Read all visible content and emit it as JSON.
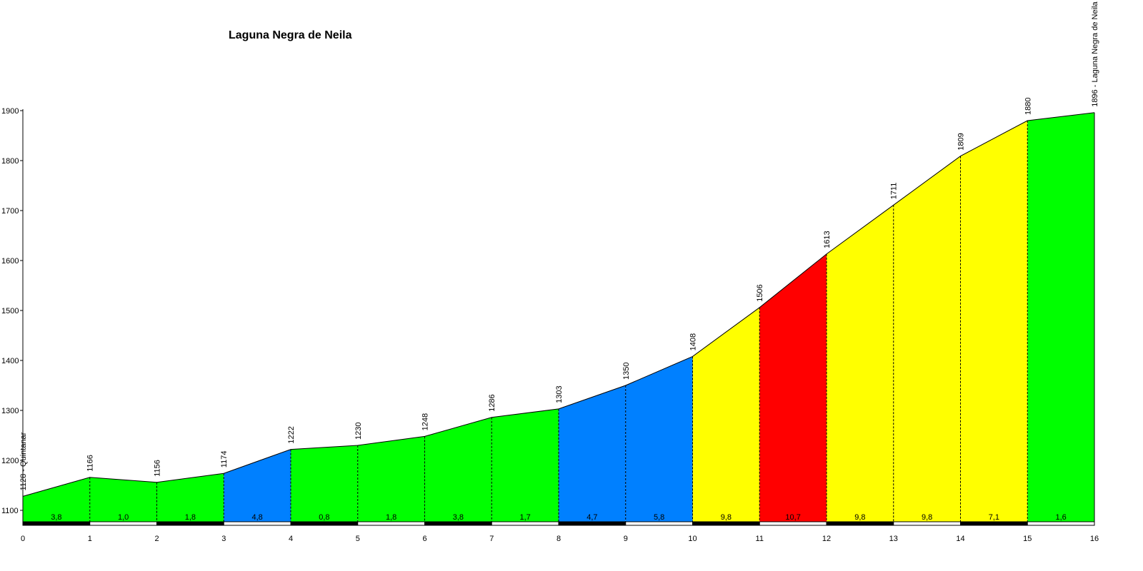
{
  "chart_data": {
    "type": "area",
    "title": "Laguna Negra de Neila",
    "xlabel": "",
    "ylabel": "",
    "xlim": [
      0,
      16
    ],
    "ylim": [
      1070,
      1900
    ],
    "x_ticks": [
      "0",
      "1",
      "2",
      "3",
      "4",
      "5",
      "6",
      "7",
      "8",
      "9",
      "10",
      "11",
      "12",
      "13",
      "14",
      "15",
      "16"
    ],
    "y_ticks": [
      "1100",
      "1200",
      "1300",
      "1400",
      "1500",
      "1600",
      "1700",
      "1800",
      "1900"
    ],
    "x": [
      0,
      1,
      2,
      3,
      4,
      5,
      6,
      7,
      8,
      9,
      10,
      11,
      12,
      13,
      14,
      15,
      16
    ],
    "elevations": [
      1128,
      1166,
      1156,
      1174,
      1222,
      1230,
      1248,
      1286,
      1303,
      1350,
      1408,
      1506,
      1613,
      1711,
      1809,
      1880,
      1896
    ],
    "point_labels": [
      "1128 - Quintanar",
      "1166",
      "1156",
      "1174",
      "1222",
      "1230",
      "1248",
      "1286",
      "1303",
      "1350",
      "1408",
      "1506",
      "1613",
      "1711",
      "1809",
      "1880",
      "1896 - Laguna Negra de Neila"
    ],
    "gradients": [
      "3,8",
      "1,0",
      "1,8",
      "4,8",
      "0,8",
      "1,8",
      "3,8",
      "1,7",
      "4,7",
      "5,8",
      "9,8",
      "10,7",
      "9,8",
      "9,8",
      "7,1",
      "1,6"
    ],
    "segment_colors": [
      "#00ff00",
      "#00ff00",
      "#00ff00",
      "#0080ff",
      "#00ff00",
      "#00ff00",
      "#00ff00",
      "#00ff00",
      "#0080ff",
      "#0080ff",
      "#ffff00",
      "#ff0000",
      "#ffff00",
      "#ffff00",
      "#ffff00",
      "#00ff00"
    ],
    "grid": false,
    "legend": "none"
  }
}
